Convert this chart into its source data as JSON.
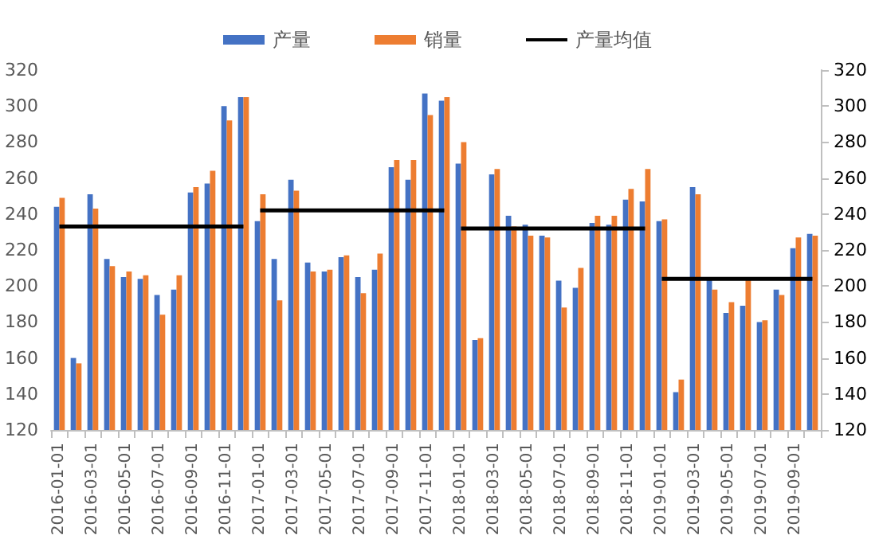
{
  "chart_data": {
    "type": "bar",
    "categories": [
      "2016-01-01",
      null,
      "2016-03-01",
      null,
      "2016-05-01",
      null,
      "2016-07-01",
      null,
      "2016-09-01",
      null,
      "2016-11-01",
      null,
      "2017-01-01",
      null,
      "2017-03-01",
      null,
      "2017-05-01",
      null,
      "2017-07-01",
      null,
      "2017-09-01",
      null,
      "2017-11-01",
      null,
      "2018-01-01",
      null,
      "2018-03-01",
      null,
      "2018-05-01",
      null,
      "2018-07-01",
      null,
      "2018-09-01",
      null,
      "2018-11-01",
      null,
      "2019-01-01",
      null,
      "2019-03-01",
      null,
      "2019-05-01",
      null,
      "2019-07-01",
      null,
      "2019-09-01",
      null
    ],
    "series": [
      {
        "name": "产量",
        "color": "#4472c4",
        "values": [
          244,
          160,
          251,
          215,
          205,
          204,
          195,
          198,
          252,
          257,
          300,
          305,
          236,
          215,
          259,
          213,
          208,
          216,
          205,
          209,
          266,
          259,
          307,
          303,
          268,
          170,
          262,
          239,
          234,
          228,
          203,
          199,
          235,
          234,
          248,
          247,
          236,
          141,
          255,
          204,
          185,
          189,
          180,
          198,
          221,
          229
        ]
      },
      {
        "name": "销量",
        "color": "#ed7d31",
        "values": [
          249,
          157,
          243,
          211,
          208,
          206,
          184,
          206,
          255,
          264,
          292,
          305,
          251,
          192,
          253,
          208,
          209,
          217,
          196,
          218,
          270,
          270,
          295,
          305,
          280,
          171,
          265,
          233,
          228,
          227,
          188,
          210,
          239,
          239,
          254,
          265,
          237,
          148,
          251,
          198,
          191,
          205,
          181,
          195,
          227,
          228
        ]
      },
      {
        "name": "产量均值",
        "type": "line",
        "color": "#000000",
        "values": [
          233,
          233,
          233,
          233,
          233,
          233,
          233,
          233,
          233,
          233,
          233,
          233,
          null,
          null,
          null,
          null,
          null,
          null,
          null,
          null,
          null,
          null,
          null,
          null,
          null,
          null,
          null,
          null,
          null,
          null,
          null,
          null,
          null,
          null,
          null,
          null,
          null,
          null,
          null,
          null,
          null,
          null,
          null,
          null,
          null,
          null
        ]
      },
      {
        "type": "line",
        "color": "#000000",
        "values": [
          null,
          null,
          null,
          null,
          null,
          null,
          null,
          null,
          null,
          null,
          null,
          null,
          242,
          242,
          242,
          242,
          242,
          242,
          242,
          242,
          242,
          242,
          242,
          242,
          null,
          null,
          null,
          null,
          null,
          null,
          null,
          null,
          null,
          null,
          null,
          null,
          null,
          null,
          null,
          null,
          null,
          null,
          null,
          null,
          null,
          null
        ]
      },
      {
        "type": "line",
        "color": "#000000",
        "values": [
          null,
          null,
          null,
          null,
          null,
          null,
          null,
          null,
          null,
          null,
          null,
          null,
          null,
          null,
          null,
          null,
          null,
          null,
          null,
          null,
          null,
          null,
          null,
          null,
          232,
          232,
          232,
          232,
          232,
          232,
          232,
          232,
          232,
          232,
          232,
          232,
          null,
          null,
          null,
          null,
          null,
          null,
          null,
          null,
          null,
          null
        ]
      },
      {
        "type": "line",
        "color": "#000000",
        "values": [
          null,
          null,
          null,
          null,
          null,
          null,
          null,
          null,
          null,
          null,
          null,
          null,
          null,
          null,
          null,
          null,
          null,
          null,
          null,
          null,
          null,
          null,
          null,
          null,
          null,
          null,
          null,
          null,
          null,
          null,
          null,
          null,
          null,
          null,
          null,
          null,
          204,
          204,
          204,
          204,
          204,
          204,
          204,
          204,
          204,
          204
        ]
      }
    ],
    "ylim": [
      120,
      320
    ],
    "yticks": [
      120,
      140,
      160,
      180,
      200,
      220,
      240,
      260,
      280,
      300,
      320
    ],
    "y2lim": [
      120,
      320
    ],
    "y2ticks": [
      120,
      140,
      160,
      180,
      200,
      220,
      240,
      260,
      280,
      300,
      320
    ],
    "grid": false,
    "legend": "top",
    "marker": "none",
    "line_style": "solid"
  }
}
